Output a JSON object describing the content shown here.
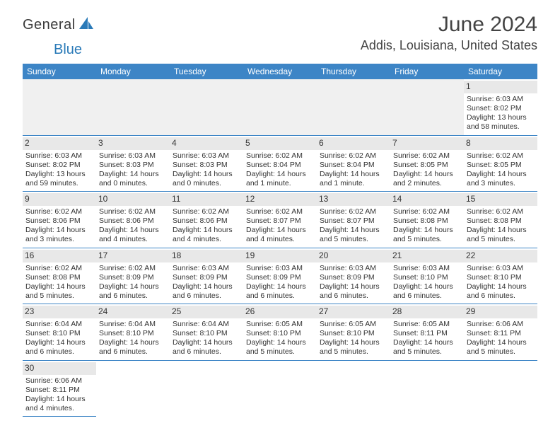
{
  "logo": {
    "text_dark": "General",
    "text_blue": "Blue"
  },
  "title": "June 2024",
  "location": "Addis, Louisiana, United States",
  "colors": {
    "header_bg": "#3d85c6",
    "header_text": "#ffffff",
    "daynum_bg": "#e8e8e8",
    "divider": "#3d85c6",
    "empty_bg": "#f0f0f0",
    "logo_blue": "#2a7ab8",
    "logo_dark": "#3a3a3a"
  },
  "weekdays": [
    "Sunday",
    "Monday",
    "Tuesday",
    "Wednesday",
    "Thursday",
    "Friday",
    "Saturday"
  ],
  "layout": {
    "columns": 7,
    "rows": 6,
    "first_weekday_index": 6,
    "days_in_month": 30
  },
  "days": {
    "1": {
      "sunrise": "6:03 AM",
      "sunset": "8:02 PM",
      "daylight": "13 hours and 58 minutes."
    },
    "2": {
      "sunrise": "6:03 AM",
      "sunset": "8:02 PM",
      "daylight": "13 hours and 59 minutes."
    },
    "3": {
      "sunrise": "6:03 AM",
      "sunset": "8:03 PM",
      "daylight": "14 hours and 0 minutes."
    },
    "4": {
      "sunrise": "6:03 AM",
      "sunset": "8:03 PM",
      "daylight": "14 hours and 0 minutes."
    },
    "5": {
      "sunrise": "6:02 AM",
      "sunset": "8:04 PM",
      "daylight": "14 hours and 1 minute."
    },
    "6": {
      "sunrise": "6:02 AM",
      "sunset": "8:04 PM",
      "daylight": "14 hours and 1 minute."
    },
    "7": {
      "sunrise": "6:02 AM",
      "sunset": "8:05 PM",
      "daylight": "14 hours and 2 minutes."
    },
    "8": {
      "sunrise": "6:02 AM",
      "sunset": "8:05 PM",
      "daylight": "14 hours and 3 minutes."
    },
    "9": {
      "sunrise": "6:02 AM",
      "sunset": "8:06 PM",
      "daylight": "14 hours and 3 minutes."
    },
    "10": {
      "sunrise": "6:02 AM",
      "sunset": "8:06 PM",
      "daylight": "14 hours and 4 minutes."
    },
    "11": {
      "sunrise": "6:02 AM",
      "sunset": "8:06 PM",
      "daylight": "14 hours and 4 minutes."
    },
    "12": {
      "sunrise": "6:02 AM",
      "sunset": "8:07 PM",
      "daylight": "14 hours and 4 minutes."
    },
    "13": {
      "sunrise": "6:02 AM",
      "sunset": "8:07 PM",
      "daylight": "14 hours and 5 minutes."
    },
    "14": {
      "sunrise": "6:02 AM",
      "sunset": "8:08 PM",
      "daylight": "14 hours and 5 minutes."
    },
    "15": {
      "sunrise": "6:02 AM",
      "sunset": "8:08 PM",
      "daylight": "14 hours and 5 minutes."
    },
    "16": {
      "sunrise": "6:02 AM",
      "sunset": "8:08 PM",
      "daylight": "14 hours and 5 minutes."
    },
    "17": {
      "sunrise": "6:02 AM",
      "sunset": "8:09 PM",
      "daylight": "14 hours and 6 minutes."
    },
    "18": {
      "sunrise": "6:03 AM",
      "sunset": "8:09 PM",
      "daylight": "14 hours and 6 minutes."
    },
    "19": {
      "sunrise": "6:03 AM",
      "sunset": "8:09 PM",
      "daylight": "14 hours and 6 minutes."
    },
    "20": {
      "sunrise": "6:03 AM",
      "sunset": "8:09 PM",
      "daylight": "14 hours and 6 minutes."
    },
    "21": {
      "sunrise": "6:03 AM",
      "sunset": "8:10 PM",
      "daylight": "14 hours and 6 minutes."
    },
    "22": {
      "sunrise": "6:03 AM",
      "sunset": "8:10 PM",
      "daylight": "14 hours and 6 minutes."
    },
    "23": {
      "sunrise": "6:04 AM",
      "sunset": "8:10 PM",
      "daylight": "14 hours and 6 minutes."
    },
    "24": {
      "sunrise": "6:04 AM",
      "sunset": "8:10 PM",
      "daylight": "14 hours and 6 minutes."
    },
    "25": {
      "sunrise": "6:04 AM",
      "sunset": "8:10 PM",
      "daylight": "14 hours and 6 minutes."
    },
    "26": {
      "sunrise": "6:05 AM",
      "sunset": "8:10 PM",
      "daylight": "14 hours and 5 minutes."
    },
    "27": {
      "sunrise": "6:05 AM",
      "sunset": "8:10 PM",
      "daylight": "14 hours and 5 minutes."
    },
    "28": {
      "sunrise": "6:05 AM",
      "sunset": "8:11 PM",
      "daylight": "14 hours and 5 minutes."
    },
    "29": {
      "sunrise": "6:06 AM",
      "sunset": "8:11 PM",
      "daylight": "14 hours and 5 minutes."
    },
    "30": {
      "sunrise": "6:06 AM",
      "sunset": "8:11 PM",
      "daylight": "14 hours and 4 minutes."
    }
  },
  "labels": {
    "sunrise": "Sunrise: ",
    "sunset": "Sunset: ",
    "daylight": "Daylight: "
  }
}
